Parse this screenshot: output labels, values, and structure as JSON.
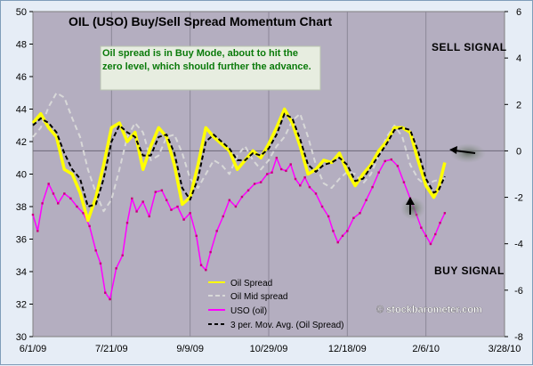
{
  "chart_data": {
    "type": "line",
    "title": "OIL (USO) Buy/Sell Spread Momentum Chart",
    "annotation": "Oil spread is in Buy Mode, about to hit the zero level, which should further the advance.",
    "signals": {
      "sell": "SELL SIGNAL",
      "buy": "BUY SIGNAL"
    },
    "watermark": "© stockbarometer.com",
    "x_tick_labels": [
      "6/1/09",
      "7/21/09",
      "9/9/09",
      "10/29/09",
      "12/18/09",
      "2/6/10",
      "3/28/10"
    ],
    "x_range_days": [
      0,
      300
    ],
    "y_left": {
      "ylim": [
        30,
        50
      ],
      "ticks": [
        30,
        32,
        34,
        36,
        38,
        40,
        42,
        44,
        46,
        48,
        50
      ]
    },
    "y_right": {
      "ylim": [
        -8,
        6
      ],
      "ticks": [
        -8,
        -6,
        -4,
        -2,
        0,
        2,
        4,
        6
      ]
    },
    "legend": [
      "Oil Spread",
      "Oil Mid spread",
      "USO (oil)",
      "3 per. Mov. Avg. (Oil Spread)"
    ],
    "series": [
      {
        "name": "Oil Spread",
        "axis": "right",
        "color": "#ffff00",
        "points": [
          [
            0,
            1.2
          ],
          [
            5,
            1.6
          ],
          [
            10,
            1.0
          ],
          [
            15,
            0.6
          ],
          [
            20,
            -0.8
          ],
          [
            25,
            -1.0
          ],
          [
            30,
            -1.8
          ],
          [
            35,
            -3.0
          ],
          [
            40,
            -2.0
          ],
          [
            45,
            -0.6
          ],
          [
            50,
            1.0
          ],
          [
            55,
            1.2
          ],
          [
            60,
            0.4
          ],
          [
            65,
            0.8
          ],
          [
            70,
            -0.8
          ],
          [
            75,
            0.2
          ],
          [
            80,
            1.0
          ],
          [
            85,
            0.6
          ],
          [
            90,
            -0.6
          ],
          [
            95,
            -2.3
          ],
          [
            100,
            -2.0
          ],
          [
            105,
            -0.6
          ],
          [
            110,
            1.0
          ],
          [
            115,
            0.6
          ],
          [
            120,
            0.3
          ],
          [
            125,
            0.0
          ],
          [
            130,
            -0.8
          ],
          [
            135,
            -0.4
          ],
          [
            140,
            0.0
          ],
          [
            145,
            -0.3
          ],
          [
            150,
            0.3
          ],
          [
            155,
            1.0
          ],
          [
            160,
            1.8
          ],
          [
            165,
            1.2
          ],
          [
            170,
            0.2
          ],
          [
            175,
            -1.0
          ],
          [
            180,
            -0.8
          ],
          [
            185,
            -0.4
          ],
          [
            190,
            -0.5
          ],
          [
            195,
            -0.1
          ],
          [
            200,
            -0.9
          ],
          [
            205,
            -1.5
          ],
          [
            210,
            -1.0
          ],
          [
            215,
            -0.6
          ],
          [
            220,
            0.0
          ],
          [
            225,
            0.4
          ],
          [
            230,
            1.0
          ],
          [
            235,
            1.0
          ],
          [
            240,
            0.8
          ],
          [
            245,
            -0.4
          ],
          [
            250,
            -1.5
          ],
          [
            255,
            -2.0
          ],
          [
            258,
            -1.6
          ],
          [
            262,
            -0.5
          ]
        ]
      },
      {
        "name": "Oil Mid spread",
        "axis": "right",
        "color": "#d8d8d8",
        "points": [
          [
            0,
            0.6
          ],
          [
            5,
            1.0
          ],
          [
            10,
            1.9
          ],
          [
            15,
            2.5
          ],
          [
            20,
            2.3
          ],
          [
            25,
            1.4
          ],
          [
            30,
            0.6
          ],
          [
            35,
            -0.8
          ],
          [
            40,
            -1.8
          ],
          [
            45,
            -2.6
          ],
          [
            50,
            -2.1
          ],
          [
            55,
            -0.8
          ],
          [
            60,
            0.6
          ],
          [
            65,
            1.2
          ],
          [
            70,
            0.8
          ],
          [
            75,
            -0.4
          ],
          [
            80,
            -0.2
          ],
          [
            85,
            0.6
          ],
          [
            90,
            0.7
          ],
          [
            95,
            -0.1
          ],
          [
            100,
            -1.2
          ],
          [
            105,
            -1.6
          ],
          [
            110,
            -1.0
          ],
          [
            115,
            -0.4
          ],
          [
            120,
            -0.6
          ],
          [
            125,
            -1.0
          ],
          [
            130,
            -0.2
          ],
          [
            135,
            0.2
          ],
          [
            140,
            -0.4
          ],
          [
            145,
            -0.8
          ],
          [
            150,
            -0.4
          ],
          [
            155,
            0.2
          ],
          [
            160,
            0.6
          ],
          [
            165,
            1.3
          ],
          [
            170,
            1.6
          ],
          [
            175,
            0.6
          ],
          [
            180,
            -0.6
          ],
          [
            185,
            -1.4
          ],
          [
            190,
            -1.6
          ],
          [
            195,
            -1.2
          ],
          [
            200,
            -0.9
          ],
          [
            205,
            -1.0
          ],
          [
            210,
            -1.4
          ],
          [
            215,
            -1.0
          ],
          [
            220,
            -0.2
          ],
          [
            225,
            0.6
          ],
          [
            230,
            1.1
          ],
          [
            235,
            0.6
          ],
          [
            240,
            -0.6
          ],
          [
            245,
            -1.2
          ],
          [
            250,
            -1.5
          ],
          [
            255,
            -1.3
          ],
          [
            262,
            -1.2
          ]
        ]
      },
      {
        "name": "USO (oil)",
        "axis": "left",
        "color": "#ff00ff",
        "points": [
          [
            0,
            37.5
          ],
          [
            3,
            36.5
          ],
          [
            6,
            38.2
          ],
          [
            10,
            39.4
          ],
          [
            13,
            38.8
          ],
          [
            16,
            38.2
          ],
          [
            20,
            38.8
          ],
          [
            24,
            38.5
          ],
          [
            28,
            38.0
          ],
          [
            32,
            37.6
          ],
          [
            36,
            36.8
          ],
          [
            40,
            35.3
          ],
          [
            43,
            34.5
          ],
          [
            46,
            32.7
          ],
          [
            49,
            32.3
          ],
          [
            53,
            34.2
          ],
          [
            57,
            35.0
          ],
          [
            60,
            37.0
          ],
          [
            63,
            38.5
          ],
          [
            66,
            37.7
          ],
          [
            70,
            38.3
          ],
          [
            74,
            37.4
          ],
          [
            78,
            38.9
          ],
          [
            82,
            39.0
          ],
          [
            85,
            38.4
          ],
          [
            88,
            37.8
          ],
          [
            92,
            38.0
          ],
          [
            96,
            37.2
          ],
          [
            100,
            37.6
          ],
          [
            104,
            36.2
          ],
          [
            107,
            34.4
          ],
          [
            110,
            34.1
          ],
          [
            113,
            35.2
          ],
          [
            117,
            36.5
          ],
          [
            121,
            37.4
          ],
          [
            125,
            38.4
          ],
          [
            129,
            38.0
          ],
          [
            133,
            38.6
          ],
          [
            137,
            39.0
          ],
          [
            141,
            39.4
          ],
          [
            145,
            39.5
          ],
          [
            149,
            40.0
          ],
          [
            152,
            40.1
          ],
          [
            155,
            41.0
          ],
          [
            158,
            40.3
          ],
          [
            161,
            40.2
          ],
          [
            164,
            40.6
          ],
          [
            167,
            39.7
          ],
          [
            170,
            39.3
          ],
          [
            173,
            39.8
          ],
          [
            176,
            39.2
          ],
          [
            180,
            38.8
          ],
          [
            184,
            38.0
          ],
          [
            188,
            37.4
          ],
          [
            191,
            36.5
          ],
          [
            194,
            35.8
          ],
          [
            197,
            36.2
          ],
          [
            200,
            36.5
          ],
          [
            204,
            37.3
          ],
          [
            208,
            37.6
          ],
          [
            212,
            38.4
          ],
          [
            216,
            39.2
          ],
          [
            220,
            40.1
          ],
          [
            224,
            40.8
          ],
          [
            228,
            40.9
          ],
          [
            232,
            40.5
          ],
          [
            236,
            39.5
          ],
          [
            240,
            38.5
          ],
          [
            244,
            37.5
          ],
          [
            247,
            36.7
          ],
          [
            250,
            36.2
          ],
          [
            253,
            35.7
          ],
          [
            256,
            36.3
          ],
          [
            259,
            37.0
          ],
          [
            262,
            37.6
          ]
        ]
      },
      {
        "name": "3 per. Mov. Avg. (Oil Spread)",
        "axis": "right",
        "color": "#000000",
        "points": [
          [
            0,
            1.1
          ],
          [
            5,
            1.4
          ],
          [
            10,
            1.2
          ],
          [
            15,
            0.8
          ],
          [
            20,
            -0.1
          ],
          [
            25,
            -0.8
          ],
          [
            30,
            -1.2
          ],
          [
            35,
            -2.4
          ],
          [
            40,
            -2.3
          ],
          [
            45,
            -1.2
          ],
          [
            50,
            0.4
          ],
          [
            55,
            1.1
          ],
          [
            60,
            0.8
          ],
          [
            65,
            0.6
          ],
          [
            70,
            -0.2
          ],
          [
            75,
            -0.2
          ],
          [
            80,
            0.6
          ],
          [
            85,
            0.7
          ],
          [
            90,
            -0.1
          ],
          [
            95,
            -1.6
          ],
          [
            100,
            -2.1
          ],
          [
            105,
            -1.2
          ],
          [
            110,
            0.4
          ],
          [
            115,
            0.7
          ],
          [
            120,
            0.4
          ],
          [
            125,
            0.1
          ],
          [
            130,
            -0.4
          ],
          [
            135,
            -0.4
          ],
          [
            140,
            -0.1
          ],
          [
            145,
            -0.2
          ],
          [
            150,
            0.1
          ],
          [
            155,
            0.7
          ],
          [
            160,
            1.6
          ],
          [
            165,
            1.4
          ],
          [
            170,
            0.5
          ],
          [
            175,
            -0.6
          ],
          [
            180,
            -0.9
          ],
          [
            185,
            -0.6
          ],
          [
            190,
            -0.5
          ],
          [
            195,
            -0.3
          ],
          [
            200,
            -0.6
          ],
          [
            205,
            -1.3
          ],
          [
            210,
            -1.2
          ],
          [
            215,
            -0.7
          ],
          [
            220,
            -0.2
          ],
          [
            225,
            0.3
          ],
          [
            230,
            0.9
          ],
          [
            235,
            1.0
          ],
          [
            240,
            0.9
          ],
          [
            245,
            0.0
          ],
          [
            250,
            -1.2
          ],
          [
            255,
            -1.8
          ],
          [
            258,
            -1.7
          ],
          [
            262,
            -1.1
          ]
        ]
      }
    ],
    "grid": "vertical",
    "legend_position": "bottom-center"
  }
}
